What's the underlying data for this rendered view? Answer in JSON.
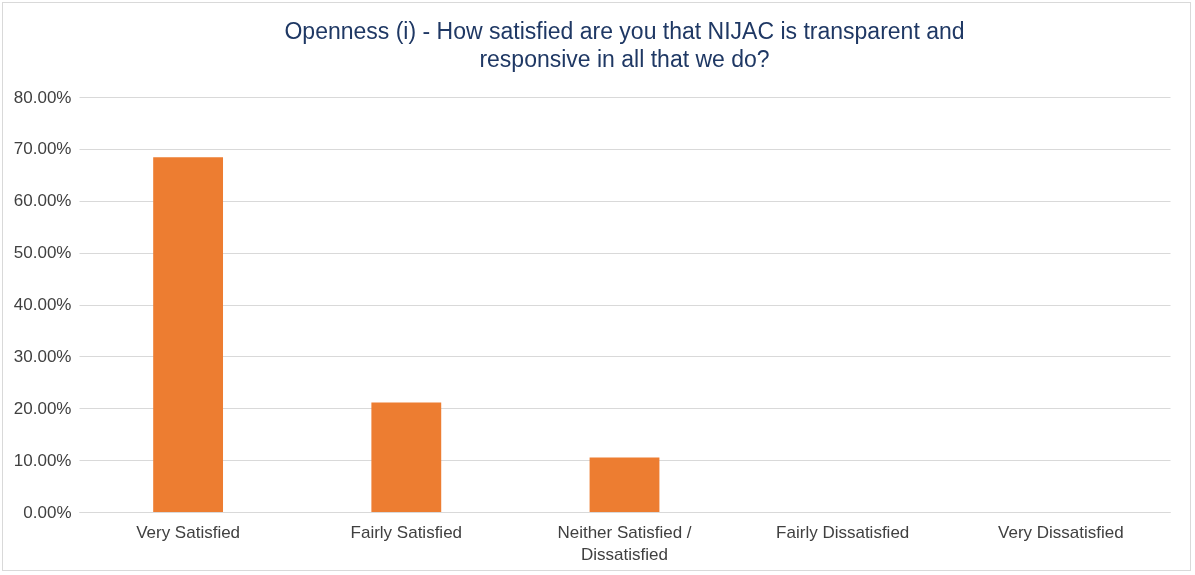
{
  "chart_data": {
    "type": "bar",
    "title": "Openness (i) - How satisfied are you that NIJAC is transparent and responsive in all that we do?",
    "categories": [
      "Very Satisfied",
      "Fairly Satisfied",
      "Neither Satisfied / Dissatisfied",
      "Fairly Dissatisfied",
      "Very Dissatisfied"
    ],
    "values": [
      68.4,
      21.1,
      10.5,
      0,
      0
    ],
    "color": "#ed7d31",
    "ylim": [
      0,
      80
    ],
    "yticks": [
      {
        "value": 0,
        "label": "0.00%"
      },
      {
        "value": 10,
        "label": "10.00%"
      },
      {
        "value": 20,
        "label": "20.00%"
      },
      {
        "value": 30,
        "label": "30.00%"
      },
      {
        "value": 40,
        "label": "40.00%"
      },
      {
        "value": 50,
        "label": "50.00%"
      },
      {
        "value": 60,
        "label": "60.00%"
      },
      {
        "value": 70,
        "label": "70.00%"
      },
      {
        "value": 80,
        "label": "80.00%"
      }
    ],
    "grid": "y"
  }
}
